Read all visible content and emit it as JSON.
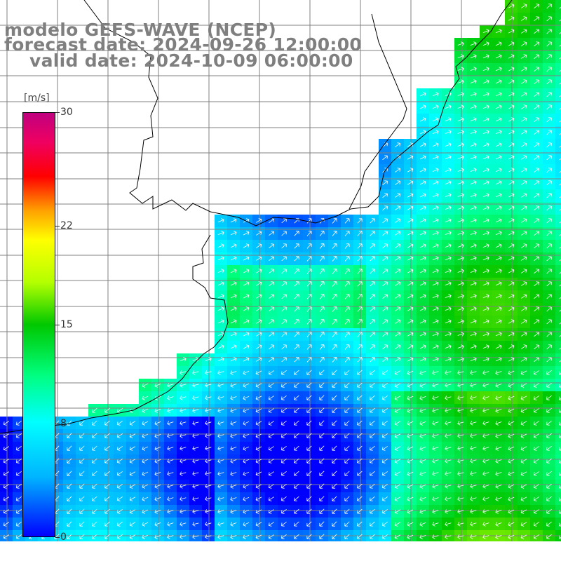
{
  "titles": {
    "model": "modelo GEFS-WAVE (NCEP)",
    "forecast": "forecast date: 2024-09-26 12:00:00",
    "valid": "valid date: 2024-10-09 06:00:00"
  },
  "colorbar": {
    "unit": "[m/s]",
    "ticks": [
      "30",
      "22",
      "15",
      "8",
      "0"
    ],
    "tick_values": [
      30,
      22,
      15,
      8,
      0
    ],
    "min": 0,
    "max": 30,
    "colors": [
      "#0000ff",
      "#00b4ff",
      "#00ffff",
      "#00ff80",
      "#00c800",
      "#b4ff00",
      "#ffff00",
      "#ffa000",
      "#ff0000",
      "#f00060",
      "#c00080"
    ]
  },
  "grid": {
    "color": "#808080",
    "land_color": "#ffffff",
    "coast_color": "#000000"
  },
  "arrow_color": "#ffffff"
}
